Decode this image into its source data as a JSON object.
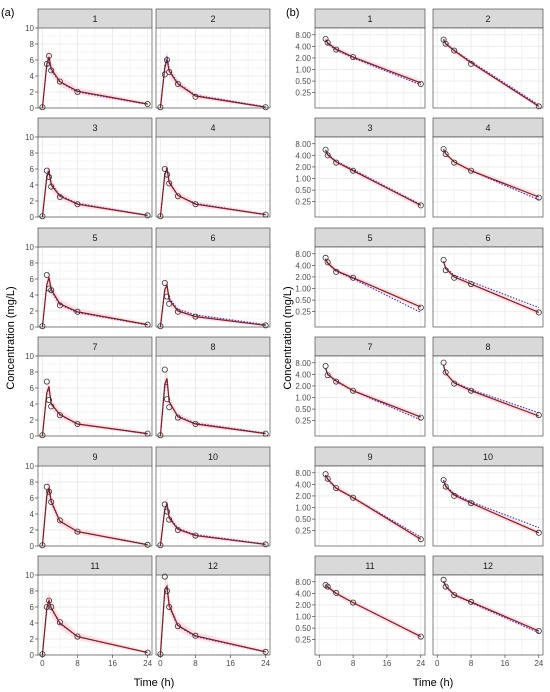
{
  "figure": {
    "panel_a_label": "(a)",
    "panel_b_label": "(b)",
    "ylabel": "Concentration (mg/L)",
    "xlabel": "Time (h)"
  },
  "colors": {
    "strip": "#d9d9d9",
    "grid": "#ebebeb",
    "frame": "#333333",
    "observed": "#333333",
    "individual_fit": "#8b1a1a",
    "population_fit": "#3333cc",
    "ci_band": "#ffd6dc"
  },
  "chart_data": [
    {
      "type": "line",
      "panel": "(a)",
      "scale": "linear",
      "xlim": [
        -1,
        25
      ],
      "ylim": [
        0,
        10
      ],
      "xticks": [
        "0",
        "8",
        "16",
        "24"
      ],
      "yticks": [
        "0",
        "2",
        "4",
        "6",
        "8",
        "10"
      ],
      "facets": [
        {
          "id": "1",
          "times": [
            0,
            1,
            1.5,
            2,
            4,
            8,
            24
          ],
          "observed": [
            0.1,
            5.5,
            6.5,
            4.7,
            3.3,
            2.0,
            0.5
          ],
          "individual": [
            0,
            5.5,
            6.4,
            4.9,
            3.3,
            2.1,
            0.5
          ],
          "population": [
            0,
            5.2,
            6.0,
            4.7,
            3.2,
            2.0,
            0.45
          ]
        },
        {
          "id": "2",
          "times": [
            0,
            1,
            1.5,
            2,
            4,
            8,
            24
          ],
          "observed": [
            0.1,
            4.2,
            6.0,
            4.5,
            3.0,
            1.4,
            0.1
          ],
          "individual": [
            0,
            5.0,
            6.1,
            4.6,
            3.0,
            1.5,
            0.1
          ],
          "population": [
            0,
            5.3,
            6.5,
            4.8,
            3.1,
            1.6,
            0.15
          ]
        },
        {
          "id": "3",
          "times": [
            0,
            1,
            1.5,
            2,
            4,
            8,
            24
          ],
          "observed": [
            0.1,
            5.8,
            5.0,
            3.8,
            2.5,
            1.6,
            0.2
          ],
          "individual": [
            0,
            5.0,
            5.7,
            4.0,
            2.6,
            1.6,
            0.2
          ],
          "population": [
            0,
            5.2,
            6.0,
            4.2,
            2.7,
            1.7,
            0.22
          ]
        },
        {
          "id": "4",
          "times": [
            0,
            1,
            1.5,
            2,
            4,
            8,
            24
          ],
          "observed": [
            0.1,
            6.0,
            5.3,
            4.2,
            2.6,
            1.6,
            0.3
          ],
          "individual": [
            0,
            5.3,
            6.0,
            4.3,
            2.7,
            1.6,
            0.3
          ],
          "population": [
            0,
            5.4,
            6.2,
            4.4,
            2.7,
            1.7,
            0.3
          ]
        },
        {
          "id": "5",
          "times": [
            0,
            1,
            1.5,
            2,
            4,
            8,
            24
          ],
          "observed": [
            0.1,
            6.5,
            4.8,
            4.6,
            2.7,
            1.9,
            0.3
          ],
          "individual": [
            0,
            5.3,
            6.2,
            4.7,
            2.9,
            1.9,
            0.3
          ],
          "population": [
            0,
            5.3,
            6.1,
            4.5,
            2.8,
            1.8,
            0.25
          ]
        },
        {
          "id": "6",
          "times": [
            0,
            1,
            1.5,
            2,
            4,
            8,
            24
          ],
          "observed": [
            0.1,
            5.5,
            3.8,
            2.9,
            1.9,
            1.3,
            0.2
          ],
          "individual": [
            0,
            4.7,
            5.2,
            3.4,
            2.0,
            1.3,
            0.2
          ],
          "population": [
            0,
            4.6,
            5.3,
            3.6,
            2.2,
            1.5,
            0.3
          ]
        },
        {
          "id": "7",
          "times": [
            0,
            1,
            1.5,
            2,
            4,
            8,
            24
          ],
          "observed": [
            0.1,
            6.8,
            4.5,
            3.7,
            2.6,
            1.5,
            0.3
          ],
          "individual": [
            0,
            5.4,
            6.2,
            4.0,
            2.7,
            1.5,
            0.3
          ],
          "population": [
            0,
            5.3,
            6.0,
            4.0,
            2.6,
            1.5,
            0.25
          ]
        },
        {
          "id": "8",
          "times": [
            0,
            1,
            1.5,
            2,
            4,
            8,
            24
          ],
          "observed": [
            0.1,
            8.3,
            4.6,
            3.6,
            2.3,
            1.5,
            0.3
          ],
          "individual": [
            0,
            6.5,
            7.2,
            4.3,
            2.4,
            1.5,
            0.3
          ],
          "population": [
            0,
            6.0,
            6.8,
            4.2,
            2.5,
            1.6,
            0.35
          ]
        },
        {
          "id": "9",
          "times": [
            0,
            1,
            1.5,
            2,
            4,
            8,
            24
          ],
          "observed": [
            0.1,
            7.4,
            6.8,
            5.5,
            3.2,
            1.8,
            0.15
          ],
          "individual": [
            0,
            6.3,
            7.3,
            5.6,
            3.1,
            1.8,
            0.15
          ],
          "population": [
            0,
            6.1,
            7.1,
            5.4,
            3.1,
            1.8,
            0.2
          ]
        },
        {
          "id": "10",
          "times": [
            0,
            1,
            1.5,
            2,
            4,
            8,
            24
          ],
          "observed": [
            0.1,
            5.2,
            4.3,
            3.3,
            2.0,
            1.3,
            0.2
          ],
          "individual": [
            0,
            4.6,
            5.2,
            3.5,
            2.1,
            1.3,
            0.2
          ],
          "population": [
            0,
            4.7,
            5.4,
            3.7,
            2.2,
            1.4,
            0.25
          ]
        },
        {
          "id": "11",
          "times": [
            0,
            1,
            1.5,
            2,
            4,
            8,
            24
          ],
          "observed": [
            0.1,
            6.0,
            6.8,
            6.0,
            4.1,
            2.3,
            0.3
          ],
          "individual": [
            0,
            5.9,
            6.8,
            5.9,
            4.0,
            2.3,
            0.3
          ],
          "population": [
            0,
            5.8,
            6.7,
            5.8,
            3.9,
            2.3,
            0.3
          ]
        },
        {
          "id": "12",
          "times": [
            0,
            1,
            1.5,
            2,
            4,
            8,
            24
          ],
          "observed": [
            0.1,
            9.8,
            8.0,
            6.0,
            3.6,
            2.4,
            0.4
          ],
          "individual": [
            0,
            8.2,
            8.6,
            6.2,
            3.7,
            2.4,
            0.4
          ],
          "population": [
            0,
            7.8,
            8.3,
            6.0,
            3.6,
            2.3,
            0.38
          ]
        }
      ]
    },
    {
      "type": "line",
      "panel": "(b)",
      "scale": "log",
      "xlim": [
        -1,
        25
      ],
      "ylim": [
        0.1,
        12
      ],
      "xticks": [
        "0",
        "8",
        "16",
        "24"
      ],
      "yticks": [
        "0.25",
        "0.50",
        "1.00",
        "2.00",
        "4.00",
        "8.00"
      ],
      "facets": [
        {
          "id": "1",
          "times": [
            1.5,
            2,
            4,
            8,
            24
          ],
          "observed": [
            6.2,
            5.0,
            3.3,
            2.1,
            0.42
          ],
          "individual": [
            6.0,
            4.9,
            3.4,
            2.1,
            0.45
          ],
          "population": [
            5.6,
            4.6,
            3.2,
            2.0,
            0.4
          ]
        },
        {
          "id": "2",
          "times": [
            1.5,
            2,
            4,
            8,
            24
          ],
          "observed": [
            6.0,
            4.7,
            3.1,
            1.4,
            0.11
          ],
          "individual": [
            5.9,
            4.7,
            3.1,
            1.5,
            0.11
          ],
          "population": [
            6.2,
            4.9,
            3.2,
            1.6,
            0.12
          ]
        },
        {
          "id": "3",
          "times": [
            1.5,
            2,
            4,
            8,
            24
          ],
          "observed": [
            5.6,
            4.0,
            2.6,
            1.6,
            0.2
          ],
          "individual": [
            5.3,
            4.1,
            2.7,
            1.6,
            0.2
          ],
          "population": [
            5.6,
            4.3,
            2.8,
            1.7,
            0.21
          ]
        },
        {
          "id": "4",
          "times": [
            1.5,
            2,
            4,
            8,
            24
          ],
          "observed": [
            5.8,
            4.3,
            2.6,
            1.6,
            0.32
          ],
          "individual": [
            5.6,
            4.4,
            2.7,
            1.6,
            0.33
          ],
          "population": [
            5.8,
            4.5,
            2.7,
            1.6,
            0.28
          ]
        },
        {
          "id": "5",
          "times": [
            1.5,
            2,
            4,
            8,
            24
          ],
          "observed": [
            6.3,
            4.8,
            2.7,
            1.9,
            0.32
          ],
          "individual": [
            6.0,
            4.6,
            2.9,
            1.9,
            0.33
          ],
          "population": [
            5.8,
            4.4,
            2.8,
            1.8,
            0.24
          ]
        },
        {
          "id": "6",
          "times": [
            1.5,
            2,
            4,
            8,
            24
          ],
          "observed": [
            5.5,
            3.0,
            1.9,
            1.3,
            0.24
          ],
          "individual": [
            5.0,
            3.3,
            2.0,
            1.3,
            0.24
          ],
          "population": [
            5.1,
            3.5,
            2.2,
            1.5,
            0.32
          ]
        },
        {
          "id": "7",
          "times": [
            1.5,
            2,
            4,
            8,
            24
          ],
          "observed": [
            6.6,
            3.8,
            2.6,
            1.5,
            0.3
          ],
          "individual": [
            5.8,
            4.0,
            2.7,
            1.5,
            0.31
          ],
          "population": [
            5.6,
            3.9,
            2.6,
            1.5,
            0.26
          ]
        },
        {
          "id": "8",
          "times": [
            1.5,
            2,
            4,
            8,
            24
          ],
          "observed": [
            8.1,
            4.5,
            2.3,
            1.5,
            0.35
          ],
          "individual": [
            6.8,
            4.3,
            2.4,
            1.5,
            0.33
          ],
          "population": [
            6.5,
            4.2,
            2.5,
            1.6,
            0.4
          ]
        },
        {
          "id": "9",
          "times": [
            1.5,
            2,
            4,
            8,
            24
          ],
          "observed": [
            7.4,
            5.6,
            3.2,
            1.8,
            0.15
          ],
          "individual": [
            7.0,
            5.5,
            3.2,
            1.8,
            0.15
          ],
          "population": [
            6.8,
            5.3,
            3.1,
            1.8,
            0.17
          ]
        },
        {
          "id": "10",
          "times": [
            1.5,
            2,
            4,
            8,
            24
          ],
          "observed": [
            5.2,
            3.5,
            2.0,
            1.3,
            0.22
          ],
          "individual": [
            5.0,
            3.5,
            2.1,
            1.3,
            0.22
          ],
          "population": [
            5.2,
            3.7,
            2.3,
            1.4,
            0.3
          ]
        },
        {
          "id": "11",
          "times": [
            1.5,
            2,
            4,
            8,
            24
          ],
          "observed": [
            6.6,
            6.0,
            4.1,
            2.3,
            0.3
          ],
          "individual": [
            6.6,
            5.9,
            4.0,
            2.3,
            0.3
          ],
          "population": [
            6.5,
            5.8,
            3.9,
            2.3,
            0.3
          ]
        },
        {
          "id": "12",
          "times": [
            1.5,
            2,
            4,
            8,
            24
          ],
          "observed": [
            9.0,
            6.0,
            3.6,
            2.4,
            0.42
          ],
          "individual": [
            8.4,
            6.2,
            3.7,
            2.4,
            0.42
          ],
          "population": [
            8.0,
            6.0,
            3.6,
            2.3,
            0.38
          ]
        }
      ]
    }
  ]
}
